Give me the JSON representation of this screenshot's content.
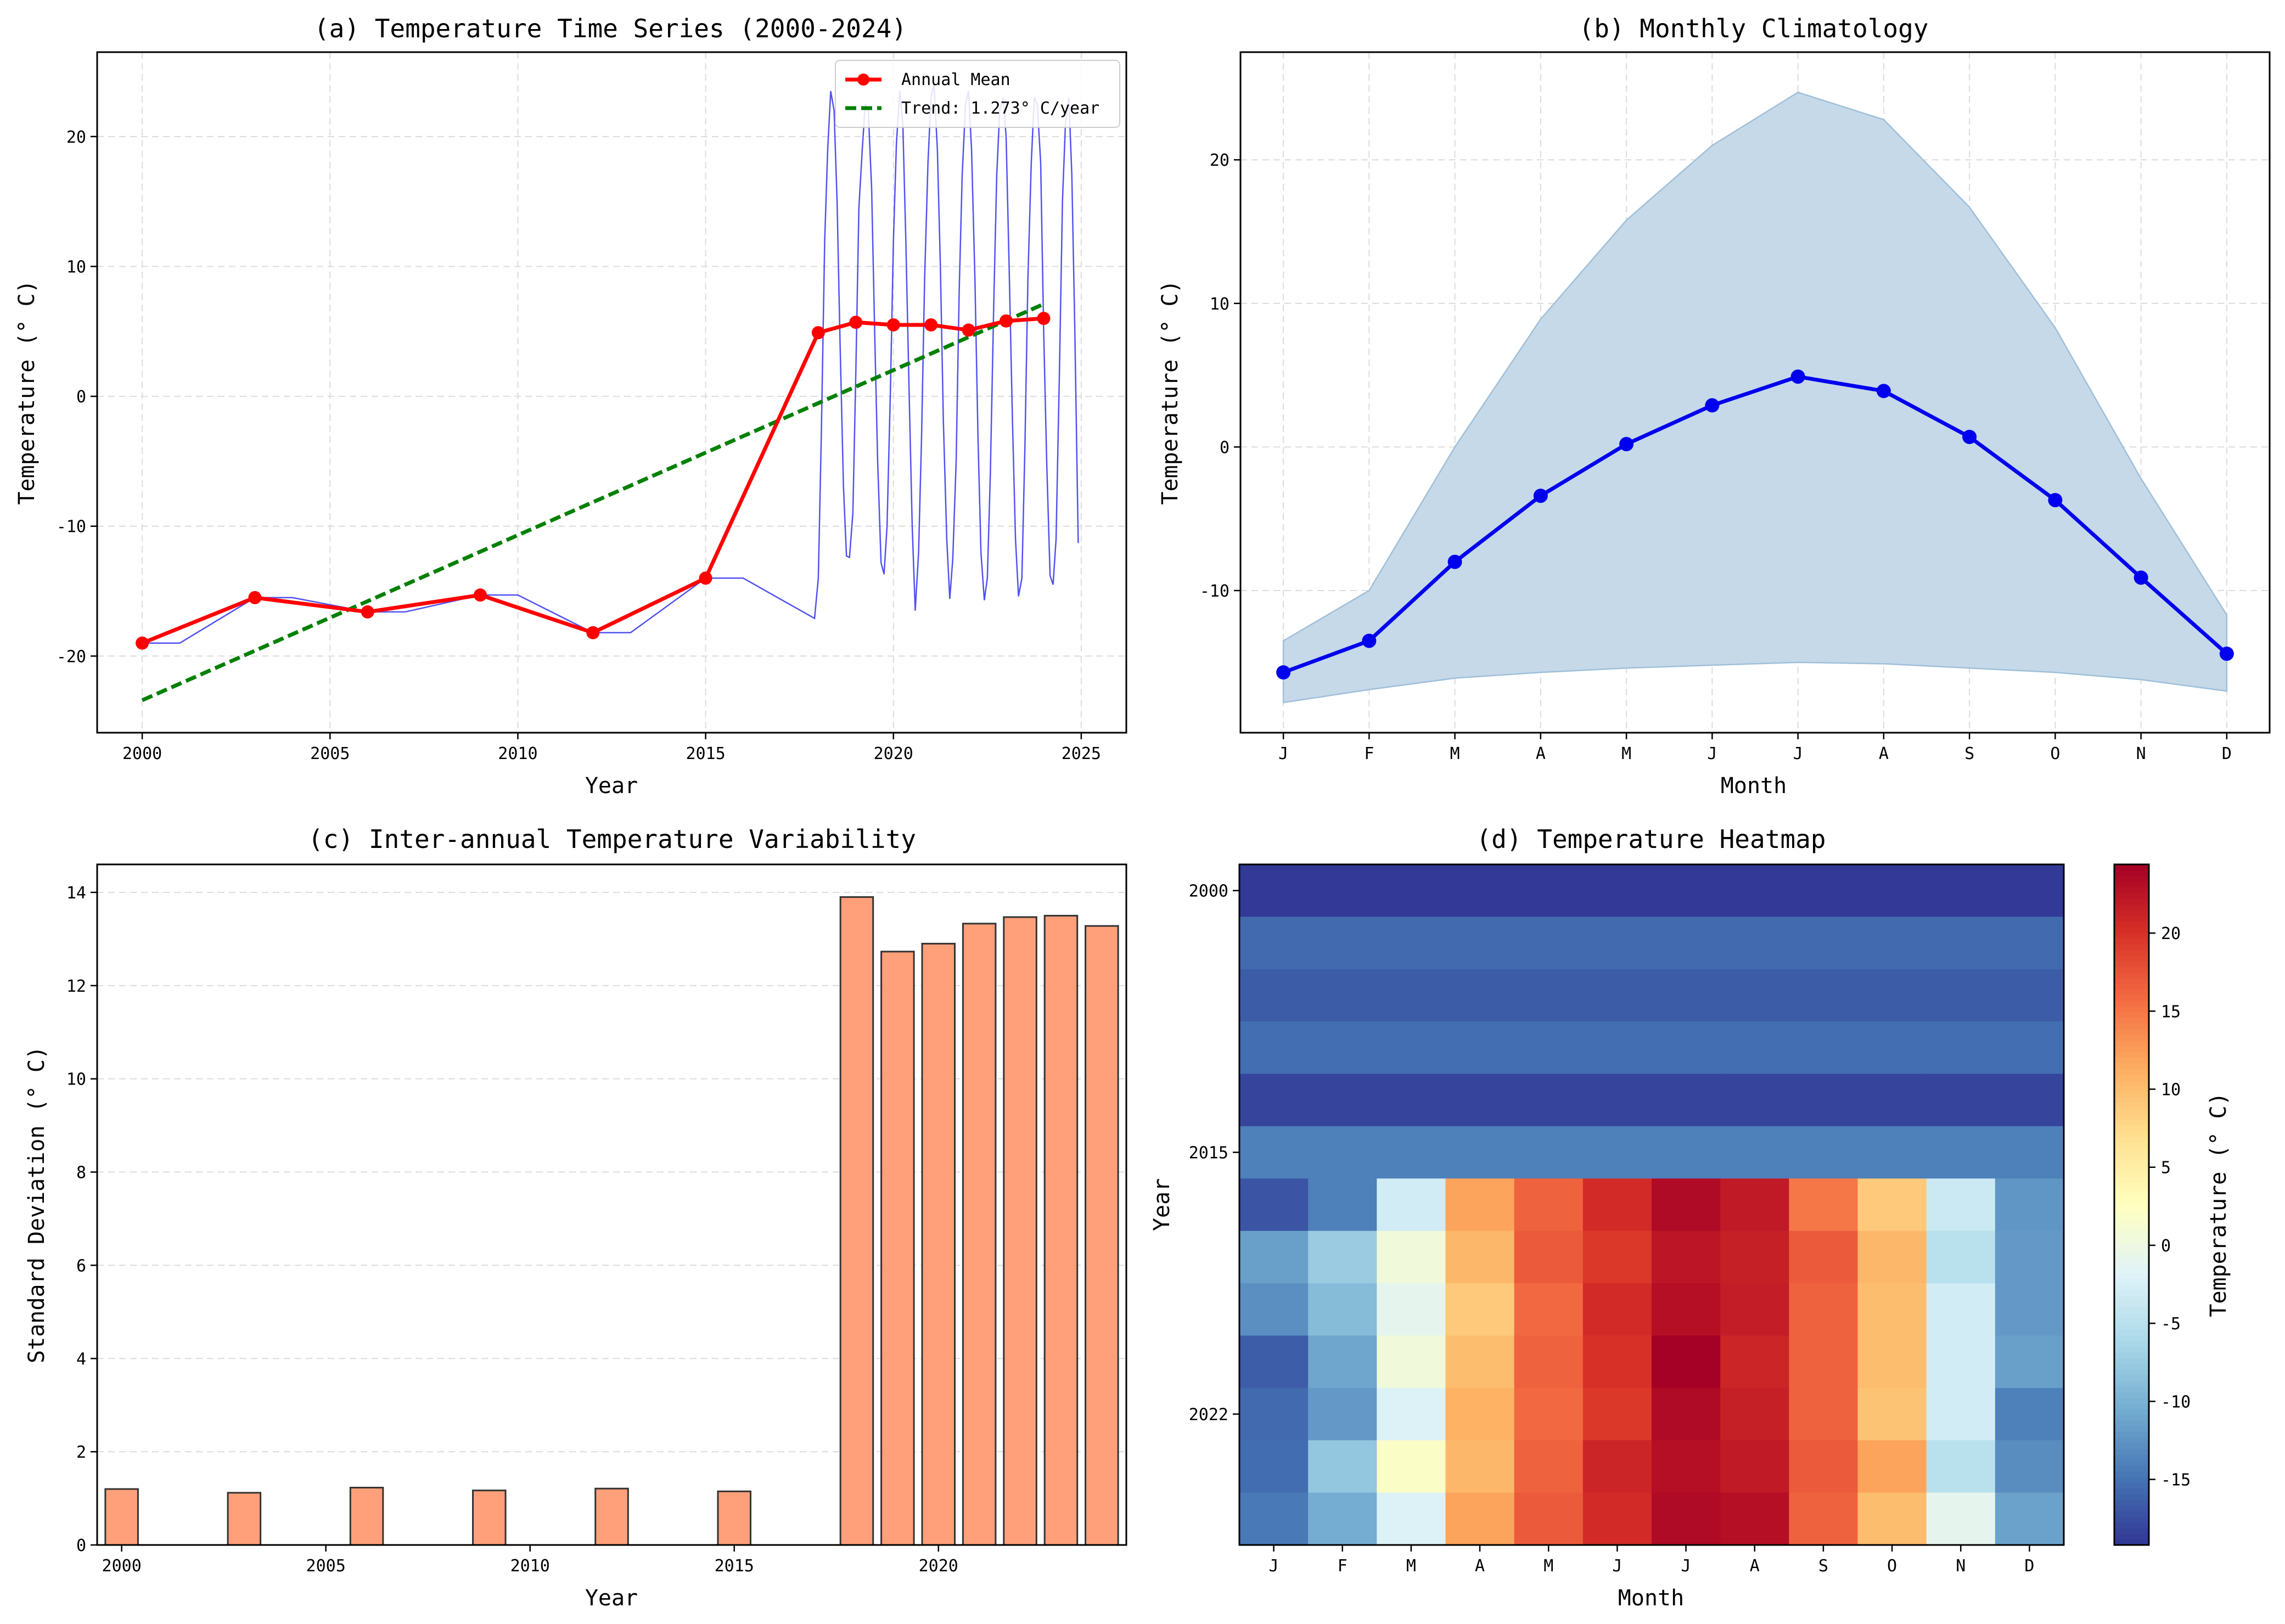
{
  "chart_data": [
    {
      "id": "a",
      "type": "line",
      "title": "(a) Temperature Time Series (2000-2024)",
      "xlabel": "Year",
      "ylabel": "Temperature (° C)",
      "xlim": [
        1998.8,
        2026.2
      ],
      "ylim": [
        -25.9,
        26.5
      ],
      "xticks": [
        2000,
        2005,
        2010,
        2015,
        2020,
        2025
      ],
      "yticks": [
        -20,
        -10,
        0,
        10,
        20
      ],
      "grid": true,
      "legend_position": "top-right",
      "colors": {
        "monthly": "#3333ee",
        "annual": "#ff0000",
        "trend": "#008000"
      },
      "series": [
        {
          "name": "Monthly",
          "legend": false,
          "x": [
            2000,
            2001,
            2003,
            2004,
            2006,
            2007,
            2009,
            2010,
            2012,
            2013,
            2015,
            2016,
            2017.9,
            2018.0,
            2018.08,
            2018.17,
            2018.25,
            2018.33,
            2018.42,
            2018.5,
            2018.58,
            2018.67,
            2018.75,
            2018.83,
            2018.92,
            2019.0,
            2019.08,
            2019.17,
            2019.25,
            2019.33,
            2019.42,
            2019.5,
            2019.58,
            2019.67,
            2019.75,
            2019.83,
            2019.92,
            2020.0,
            2020.08,
            2020.17,
            2020.25,
            2020.33,
            2020.42,
            2020.5,
            2020.58,
            2020.67,
            2020.75,
            2020.83,
            2020.92,
            2021.0,
            2021.08,
            2021.17,
            2021.25,
            2021.33,
            2021.42,
            2021.5,
            2021.58,
            2021.67,
            2021.75,
            2021.83,
            2021.92,
            2022.0,
            2022.08,
            2022.17,
            2022.25,
            2022.33,
            2022.42,
            2022.5,
            2022.58,
            2022.67,
            2022.75,
            2022.83,
            2022.92,
            2023.0,
            2023.08,
            2023.17,
            2023.25,
            2023.33,
            2023.42,
            2023.5,
            2023.58,
            2023.67,
            2023.75,
            2023.83,
            2023.92,
            2024.0,
            2024.08,
            2024.17,
            2024.25,
            2024.33,
            2024.42,
            2024.5,
            2024.58,
            2024.67,
            2024.75,
            2024.83,
            2024.92
          ],
          "y": [
            -19.0,
            -19.0,
            -15.5,
            -15.5,
            -16.6,
            -16.6,
            -15.3,
            -15.3,
            -18.2,
            -18.2,
            -14.0,
            -14.0,
            -17.1,
            -14.0,
            -3.0,
            12.0,
            19.0,
            23.5,
            22.0,
            15.0,
            4.0,
            -7.0,
            -12.3,
            -12.4,
            -9.0,
            2.0,
            14.5,
            19.0,
            22.5,
            22.0,
            16.0,
            5.0,
            -5.0,
            -12.8,
            -13.7,
            -10.0,
            0.5,
            12.0,
            19.5,
            23.5,
            21.0,
            12.0,
            0.0,
            -10.0,
            -16.5,
            -12.0,
            -3.0,
            9.0,
            18.0,
            23.0,
            24.0,
            19.0,
            10.0,
            -2.0,
            -11.0,
            -15.6,
            -12.5,
            -5.0,
            8.0,
            17.0,
            22.5,
            23.5,
            19.0,
            9.0,
            -3.0,
            -12.0,
            -15.7,
            -14.0,
            -6.0,
            7.0,
            17.0,
            22.0,
            23.0,
            20.0,
            10.0,
            -2.0,
            -11.0,
            -15.4,
            -14.0,
            -4.0,
            9.0,
            18.0,
            23.0,
            22.5,
            18.0,
            5.0,
            -5.0,
            -13.8,
            -14.5,
            -11.0,
            2.0,
            15.0,
            21.0,
            23.0,
            17.0,
            5.0,
            -11.3
          ]
        },
        {
          "name": "Annual Mean",
          "x": [
            2000,
            2003,
            2006,
            2009,
            2012,
            2015,
            2018,
            2019,
            2020,
            2021,
            2022,
            2023,
            2024
          ],
          "y": [
            -19.0,
            -15.5,
            -16.6,
            -15.3,
            -18.2,
            -14.0,
            4.9,
            5.7,
            5.5,
            5.5,
            5.1,
            5.8,
            6.0
          ]
        },
        {
          "name": "Trend: 1.273° C/year",
          "x": [
            2000,
            2024
          ],
          "y": [
            -23.4,
            7.1
          ]
        }
      ]
    },
    {
      "id": "b",
      "type": "area",
      "title": "(b) Monthly Climatology",
      "xlabel": "Month",
      "ylabel": "Temperature (° C)",
      "categories": [
        "J",
        "F",
        "M",
        "A",
        "M",
        "J",
        "J",
        "A",
        "S",
        "O",
        "N",
        "D"
      ],
      "ylim": [
        -19.9,
        27.5
      ],
      "yticks": [
        -10,
        0,
        10,
        20
      ],
      "grid": true,
      "colors": {
        "line": "#0000ee",
        "band_fill": "#c6d9e9",
        "band_edge": "#9fbfd9"
      },
      "series": [
        {
          "name": "mean",
          "values": [
            -15.7,
            -13.5,
            -8.0,
            -3.4,
            0.2,
            2.9,
            4.9,
            3.9,
            0.7,
            -3.7,
            -9.1,
            -14.4
          ]
        },
        {
          "name": "upper",
          "values": [
            -13.5,
            -10.0,
            0.0,
            8.9,
            15.8,
            21.0,
            24.7,
            22.8,
            16.7,
            8.3,
            -2.2,
            -11.7
          ]
        },
        {
          "name": "lower",
          "values": [
            -17.8,
            -16.9,
            -16.1,
            -15.7,
            -15.4,
            -15.2,
            -15.0,
            -15.1,
            -15.4,
            -15.7,
            -16.2,
            -17.0
          ]
        }
      ]
    },
    {
      "id": "c",
      "type": "bar",
      "title": "(c) Inter-annual Temperature Variability",
      "xlabel": "Year",
      "ylabel": "Standard Deviation (° C)",
      "xlim": [
        1999.4,
        2024.6
      ],
      "ylim": [
        0,
        14.6
      ],
      "xticks": [
        2000,
        2005,
        2010,
        2015,
        2020
      ],
      "yticks": [
        0,
        2,
        4,
        6,
        8,
        10,
        12,
        14
      ],
      "grid": true,
      "colors": {
        "bar": "#ffa07a",
        "edge": "#333333"
      },
      "x": [
        2000,
        2003,
        2006,
        2009,
        2012,
        2015,
        2018,
        2019,
        2020,
        2021,
        2022,
        2023,
        2024
      ],
      "values": [
        1.2,
        1.12,
        1.23,
        1.17,
        1.21,
        1.15,
        13.9,
        12.73,
        12.9,
        13.33,
        13.47,
        13.5,
        13.28
      ]
    },
    {
      "id": "d",
      "type": "heatmap",
      "title": "(d) Temperature Heatmap",
      "xlabel": "Month",
      "ylabel": "Year",
      "xcategories": [
        "J",
        "F",
        "M",
        "A",
        "M",
        "J",
        "J",
        "A",
        "S",
        "O",
        "N",
        "D"
      ],
      "yticks": [
        {
          "row": 0,
          "label": "2000"
        },
        {
          "row": 5,
          "label": "2015"
        },
        {
          "row": 10,
          "label": "2022"
        }
      ],
      "rows": [
        "2000",
        "2003",
        "2006",
        "2009",
        "2012",
        "2015",
        "2018",
        "2019",
        "2020",
        "2021",
        "2022",
        "2023",
        "2024"
      ],
      "colorbar": {
        "label": "Temperature (° C)",
        "min": -19.2,
        "max": 24.4,
        "ticks": [
          -15,
          -10,
          -5,
          0,
          5,
          10,
          15,
          20
        ]
      },
      "values": [
        [
          -19.0,
          -19.0,
          -19.0,
          -19.0,
          -19.0,
          -19.0,
          -19.0,
          -19.0,
          -19.0,
          -19.0,
          -19.0,
          -19.0
        ],
        [
          -15.5,
          -15.5,
          -15.5,
          -15.5,
          -15.5,
          -15.5,
          -15.5,
          -15.5,
          -15.5,
          -15.5,
          -15.5,
          -15.5
        ],
        [
          -16.6,
          -16.6,
          -16.6,
          -16.6,
          -16.6,
          -16.6,
          -16.6,
          -16.6,
          -16.6,
          -16.6,
          -16.6,
          -16.6
        ],
        [
          -15.3,
          -15.3,
          -15.3,
          -15.3,
          -15.3,
          -15.3,
          -15.3,
          -15.3,
          -15.3,
          -15.3,
          -15.3,
          -15.3
        ],
        [
          -18.2,
          -18.2,
          -18.2,
          -18.2,
          -18.2,
          -18.2,
          -18.2,
          -18.2,
          -18.2,
          -18.2,
          -18.2,
          -18.2
        ],
        [
          -14.0,
          -14.0,
          -14.0,
          -14.0,
          -14.0,
          -14.0,
          -14.0,
          -14.0,
          -14.0,
          -14.0,
          -14.0,
          -14.0
        ],
        [
          -17.1,
          -14.0,
          -3.0,
          12.0,
          16.5,
          20.5,
          23.5,
          22.0,
          15.0,
          9.0,
          -3.5,
          -12.3
        ],
        [
          -11.5,
          -7.5,
          0.5,
          10.5,
          17.0,
          19.5,
          22.5,
          21.5,
          17.0,
          10.5,
          -5.0,
          -12.0
        ],
        [
          -12.8,
          -9.0,
          -1.0,
          9.0,
          16.0,
          20.5,
          23.0,
          21.8,
          16.5,
          10.0,
          -3.0,
          -12.0
        ],
        [
          -16.5,
          -11.0,
          0.5,
          10.0,
          16.5,
          20.0,
          24.4,
          21.0,
          16.5,
          10.0,
          -3.0,
          -11.5
        ],
        [
          -15.6,
          -12.0,
          -2.0,
          11.0,
          16.0,
          19.5,
          23.5,
          21.5,
          16.5,
          9.5,
          -3.0,
          -14.0
        ],
        [
          -15.4,
          -8.0,
          2.0,
          10.5,
          16.5,
          21.0,
          23.0,
          22.0,
          17.0,
          12.0,
          -5.0,
          -13.0
        ],
        [
          -14.5,
          -10.5,
          -2.0,
          12.0,
          17.0,
          20.5,
          23.5,
          23.0,
          16.5,
          10.0,
          -1.0,
          -11.3
        ]
      ]
    }
  ]
}
